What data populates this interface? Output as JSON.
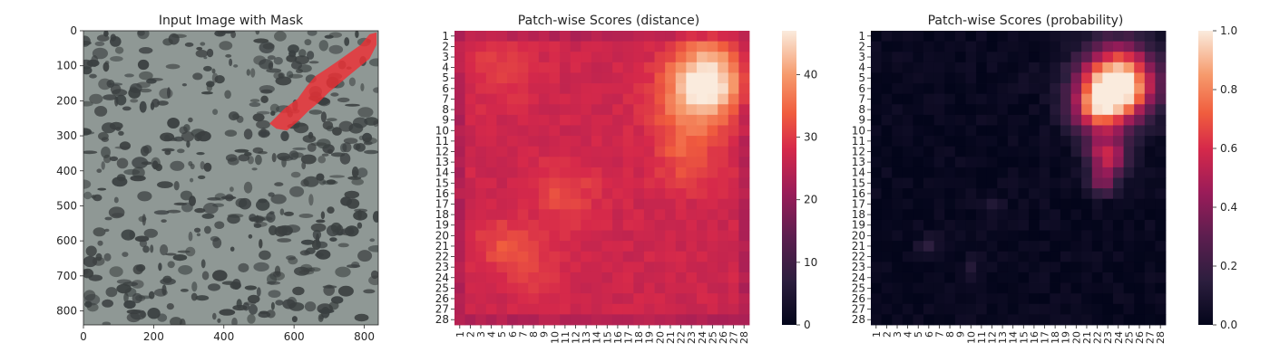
{
  "chart_data": [
    {
      "type": "image",
      "title": "Input Image with Mask",
      "x_ticks": [
        0,
        200,
        400,
        600,
        800
      ],
      "y_ticks": [
        0,
        100,
        200,
        300,
        400,
        500,
        600,
        700,
        800
      ],
      "xlim": [
        0,
        840
      ],
      "ylim": [
        840,
        0
      ],
      "image_colors": {
        "base": "#8f9895",
        "dark_spots": "#3a3f40",
        "mask": "#ee2f35"
      },
      "mask_polygon": [
        [
          530,
          265
        ],
        [
          575,
          220
        ],
        [
          610,
          195
        ],
        [
          635,
          160
        ],
        [
          660,
          130
        ],
        [
          690,
          110
        ],
        [
          720,
          90
        ],
        [
          755,
          65
        ],
        [
          790,
          40
        ],
        [
          815,
          10
        ],
        [
          835,
          5
        ],
        [
          835,
          40
        ],
        [
          815,
          80
        ],
        [
          790,
          100
        ],
        [
          760,
          125
        ],
        [
          730,
          150
        ],
        [
          700,
          175
        ],
        [
          670,
          205
        ],
        [
          640,
          230
        ],
        [
          610,
          260
        ],
        [
          580,
          285
        ],
        [
          550,
          280
        ]
      ]
    },
    {
      "type": "heatmap",
      "title": "Patch-wise Scores (distance)",
      "x_labels": [
        "1",
        "2",
        "3",
        "4",
        "5",
        "6",
        "7",
        "8",
        "9",
        "10",
        "11",
        "12",
        "13",
        "14",
        "15",
        "16",
        "17",
        "18",
        "19",
        "20",
        "21",
        "22",
        "23",
        "24",
        "25",
        "26",
        "27",
        "28"
      ],
      "y_labels": [
        "1",
        "2",
        "3",
        "4",
        "5",
        "6",
        "7",
        "8",
        "9",
        "10",
        "11",
        "12",
        "13",
        "14",
        "15",
        "16",
        "17",
        "18",
        "19",
        "20",
        "21",
        "22",
        "23",
        "24",
        "25",
        "26",
        "27",
        "28"
      ],
      "colorbar_ticks": [
        0,
        10,
        20,
        30,
        40
      ],
      "vmin": 0,
      "vmax": 47,
      "colormap": "rocket",
      "grid": {
        "rows": 28,
        "cols": 28,
        "base": 27,
        "edge": 24,
        "blobs": [
          {
            "row": 5,
            "col": 24.5,
            "sigma": 2.3,
            "amp": 20
          },
          {
            "row": 8,
            "col": 23,
            "sigma": 2.6,
            "amp": 8
          },
          {
            "row": 13,
            "col": 22.5,
            "sigma": 2.0,
            "amp": 5
          },
          {
            "row": 16,
            "col": 11,
            "sigma": 2.0,
            "amp": 5
          },
          {
            "row": 21,
            "col": 5,
            "sigma": 1.8,
            "amp": 5
          },
          {
            "row": 23,
            "col": 8,
            "sigma": 1.8,
            "amp": 4
          },
          {
            "row": 4,
            "col": 5,
            "sigma": 2.5,
            "amp": 3
          }
        ]
      }
    },
    {
      "type": "heatmap",
      "title": "Patch-wise Scores (probability)",
      "x_labels": [
        "1",
        "2",
        "3",
        "4",
        "5",
        "6",
        "7",
        "8",
        "9",
        "10",
        "11",
        "12",
        "13",
        "14",
        "15",
        "16",
        "17",
        "18",
        "19",
        "20",
        "21",
        "22",
        "23",
        "24",
        "25",
        "26",
        "27",
        "28"
      ],
      "y_labels": [
        "1",
        "2",
        "3",
        "4",
        "5",
        "6",
        "7",
        "8",
        "9",
        "10",
        "11",
        "12",
        "13",
        "14",
        "15",
        "16",
        "17",
        "18",
        "19",
        "20",
        "21",
        "22",
        "23",
        "24",
        "25",
        "26",
        "27",
        "28"
      ],
      "colorbar_ticks": [
        0.0,
        0.2,
        0.4,
        0.6,
        0.8,
        1.0
      ],
      "colorbar_tick_labels": [
        "0.0",
        "0.2",
        "0.4",
        "0.6",
        "0.8",
        "1.0"
      ],
      "vmin": 0,
      "vmax": 1,
      "colormap": "rocket",
      "grid": {
        "rows": 28,
        "cols": 28,
        "base": 0.02,
        "edge": 0.02,
        "blobs": [
          {
            "row": 5.5,
            "col": 24,
            "sigma": 2.4,
            "amp": 1.1
          },
          {
            "row": 8,
            "col": 22,
            "sigma": 1.8,
            "amp": 0.5
          },
          {
            "row": 12.5,
            "col": 23,
            "sigma": 1.3,
            "amp": 0.55
          },
          {
            "row": 15,
            "col": 22.5,
            "sigma": 0.9,
            "amp": 0.3
          },
          {
            "row": 21,
            "col": 6,
            "sigma": 0.7,
            "amp": 0.12
          },
          {
            "row": 23,
            "col": 10,
            "sigma": 0.7,
            "amp": 0.1
          },
          {
            "row": 17,
            "col": 12,
            "sigma": 0.8,
            "amp": 0.08
          },
          {
            "row": 5,
            "col": 15,
            "sigma": 0.8,
            "amp": 0.06
          }
        ]
      }
    }
  ]
}
